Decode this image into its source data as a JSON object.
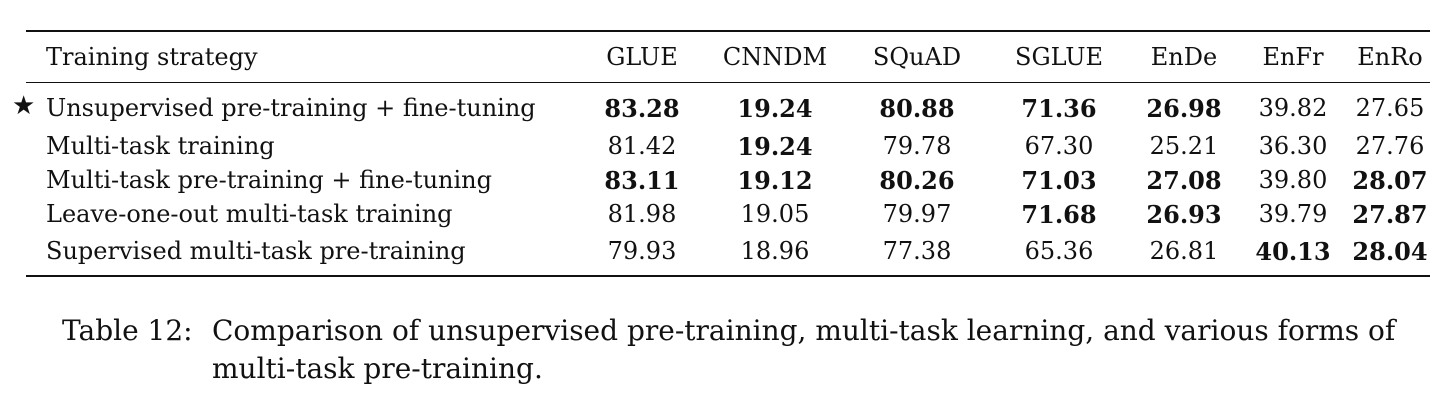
{
  "table": {
    "headers": [
      "Training strategy",
      "GLUE",
      "CNNDM",
      "SQuAD",
      "SGLUE",
      "EnDe",
      "EnFr",
      "EnRo"
    ],
    "rows": [
      {
        "marker": "★",
        "strategy": "Unsupervised pre-training + fine-tuning",
        "values": [
          "83.28",
          "19.24",
          "80.88",
          "71.36",
          "26.98",
          "39.82",
          "27.65"
        ],
        "bold": [
          true,
          true,
          true,
          true,
          true,
          false,
          false
        ]
      },
      {
        "marker": "",
        "strategy": "Multi-task training",
        "values": [
          "81.42",
          "19.24",
          "79.78",
          "67.30",
          "25.21",
          "36.30",
          "27.76"
        ],
        "bold": [
          false,
          true,
          false,
          false,
          false,
          false,
          false
        ]
      },
      {
        "marker": "",
        "strategy": "Multi-task pre-training + fine-tuning",
        "values": [
          "83.11",
          "19.12",
          "80.26",
          "71.03",
          "27.08",
          "39.80",
          "28.07"
        ],
        "bold": [
          true,
          true,
          true,
          true,
          true,
          false,
          true
        ]
      },
      {
        "marker": "",
        "strategy": "Leave-one-out multi-task training",
        "values": [
          "81.98",
          "19.05",
          "79.97",
          "71.68",
          "26.93",
          "39.79",
          "27.87"
        ],
        "bold": [
          false,
          false,
          false,
          true,
          true,
          false,
          true
        ]
      },
      {
        "marker": "",
        "strategy": "Supervised multi-task pre-training",
        "values": [
          "79.93",
          "18.96",
          "77.38",
          "65.36",
          "26.81",
          "40.13",
          "28.04"
        ],
        "bold": [
          false,
          false,
          false,
          false,
          false,
          true,
          true
        ]
      }
    ]
  },
  "caption": {
    "label": "Table 12:",
    "text": "Comparison of unsupervised pre-training, multi-task learning, and various forms of multi-task pre-training."
  }
}
